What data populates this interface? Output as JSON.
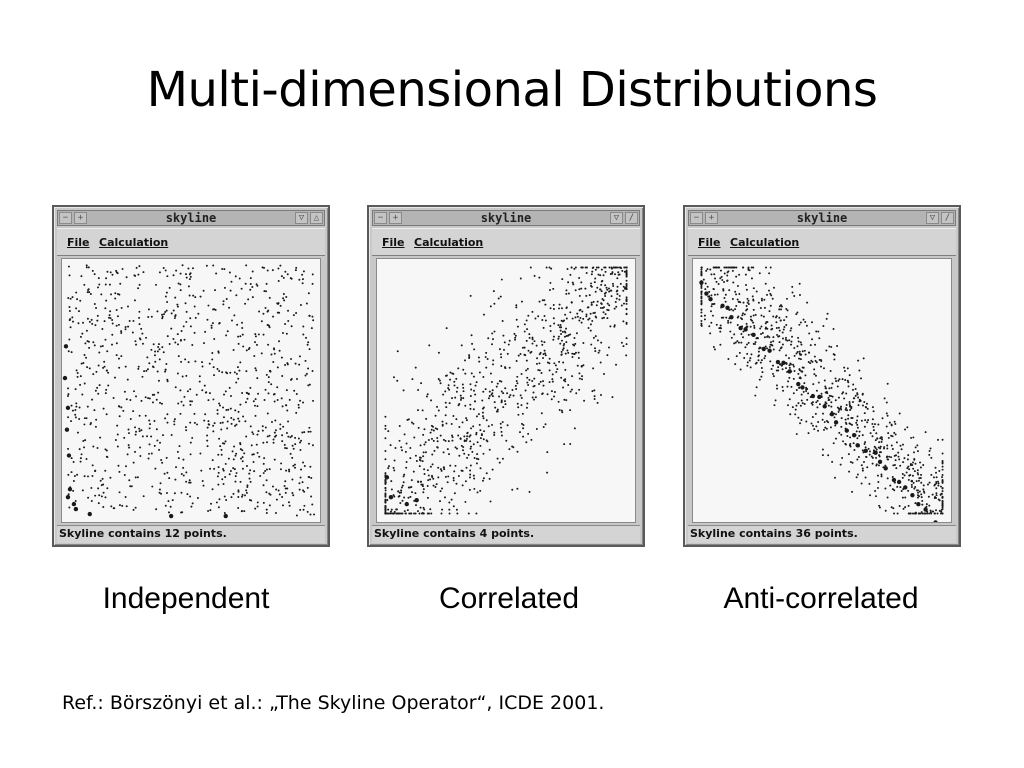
{
  "slide": {
    "title": "Multi-dimensional Distributions",
    "reference": "Ref.: Börszönyi et al.: „The Skyline Operator“, ICDE 2001."
  },
  "window_common": {
    "title": "skyline",
    "menu_file": "File",
    "menu_calculation": "Calculation",
    "icons": [
      "window-menu-icon",
      "pin-icon",
      "minimize-icon",
      "maximize-icon"
    ]
  },
  "panels": [
    {
      "id": "independent",
      "caption": "Independent",
      "status": "Skyline contains 12 points.",
      "distribution": "independent"
    },
    {
      "id": "correlated",
      "caption": "Correlated",
      "status": "Skyline contains 4 points.",
      "distribution": "correlated"
    },
    {
      "id": "anti-correlated",
      "caption": "Anti-correlated",
      "status": "Skyline contains 36 points.",
      "distribution": "anti-correlated"
    }
  ],
  "colors": {
    "point": "#1a1a1a",
    "plot_background": "#f7f7f7",
    "window_frame": "#c8c8c8"
  }
}
